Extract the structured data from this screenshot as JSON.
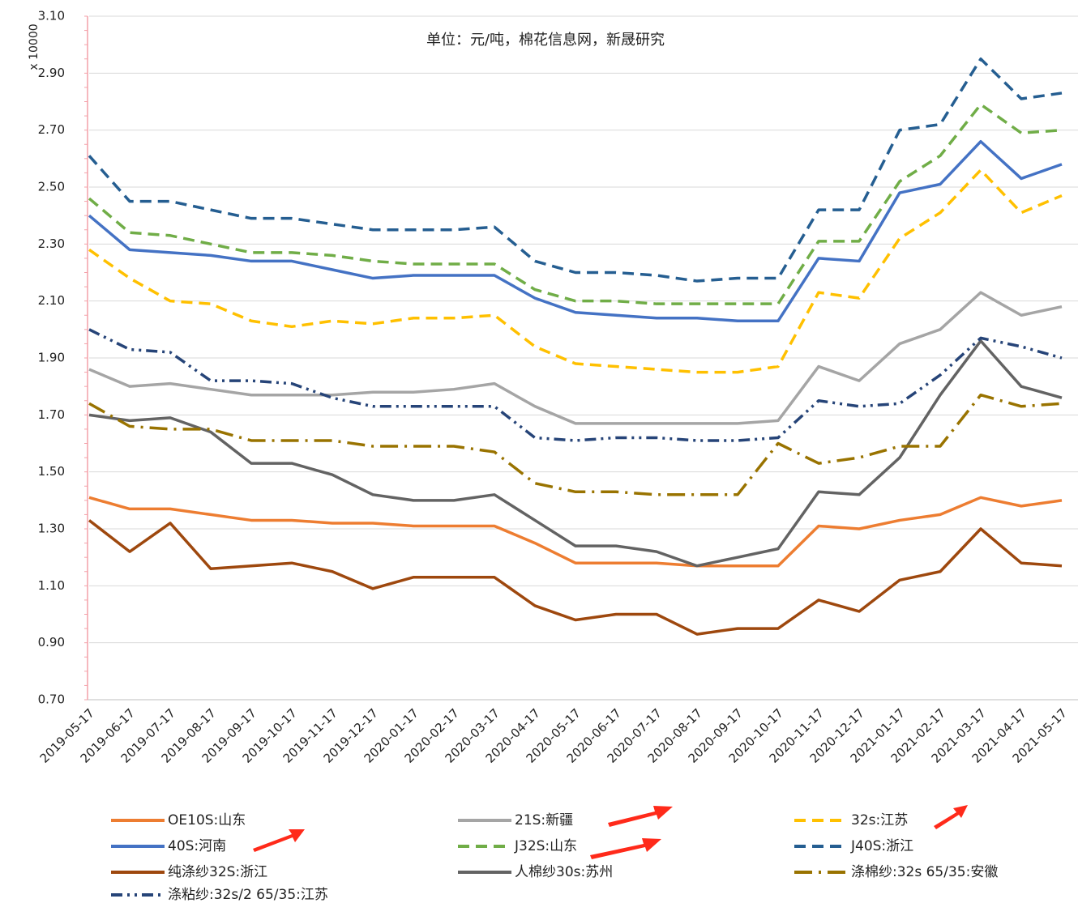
{
  "chart_data": {
    "type": "line",
    "subtitle": "单位：元/吨，棉花信息网，新晟研究",
    "y_axis_label": "x 10000",
    "categories": [
      "2019-05-17",
      "2019-06-17",
      "2019-07-17",
      "2019-08-17",
      "2019-09-17",
      "2019-10-17",
      "2019-11-17",
      "2019-12-17",
      "2020-01-17",
      "2020-02-17",
      "2020-03-17",
      "2020-04-17",
      "2020-05-17",
      "2020-06-17",
      "2020-07-17",
      "2020-08-17",
      "2020-09-17",
      "2020-10-17",
      "2020-11-17",
      "2020-12-17",
      "2021-01-17",
      "2021-02-17",
      "2021-03-17",
      "2021-04-17",
      "2021-05-17"
    ],
    "ylim": [
      0.7,
      3.1
    ],
    "yticks": [
      {
        "value": 0.7,
        "label": "0.70"
      },
      {
        "value": 0.9,
        "label": "0.90"
      },
      {
        "value": 1.1,
        "label": "1.10"
      },
      {
        "value": 1.3,
        "label": "1.30"
      },
      {
        "value": 1.5,
        "label": "1.50"
      },
      {
        "value": 1.7,
        "label": "1.70"
      },
      {
        "value": 1.9,
        "label": "1.90"
      },
      {
        "value": 2.1,
        "label": "2.10"
      },
      {
        "value": 2.3,
        "label": "2.30"
      },
      {
        "value": 2.5,
        "label": "2.50"
      },
      {
        "value": 2.7,
        "label": "2.70"
      },
      {
        "value": 2.9,
        "label": "2.90"
      },
      {
        "value": 3.1,
        "label": "3.10"
      }
    ],
    "grid": true,
    "series": [
      {
        "name": "OE10S:山东",
        "color": "#ed7d31",
        "dash": "solid",
        "values": [
          1.41,
          1.37,
          1.37,
          1.35,
          1.33,
          1.33,
          1.32,
          1.32,
          1.31,
          1.31,
          1.31,
          1.25,
          1.18,
          1.18,
          1.18,
          1.17,
          1.17,
          1.17,
          1.31,
          1.3,
          1.33,
          1.35,
          1.41,
          1.38,
          1.4
        ]
      },
      {
        "name": "21S:新疆",
        "color": "#a5a5a5",
        "dash": "solid",
        "values": [
          1.86,
          1.8,
          1.81,
          1.79,
          1.77,
          1.77,
          1.77,
          1.78,
          1.78,
          1.79,
          1.81,
          1.73,
          1.67,
          1.67,
          1.67,
          1.67,
          1.67,
          1.68,
          1.87,
          1.82,
          1.95,
          2.0,
          2.13,
          2.05,
          2.08
        ]
      },
      {
        "name": "32s:江苏",
        "color": "#ffc000",
        "dash": "dash",
        "values": [
          2.28,
          2.18,
          2.1,
          2.09,
          2.03,
          2.01,
          2.03,
          2.02,
          2.04,
          2.04,
          2.05,
          1.94,
          1.88,
          1.87,
          1.86,
          1.85,
          1.85,
          1.87,
          2.13,
          2.11,
          2.32,
          2.41,
          2.56,
          2.41,
          2.47
        ]
      },
      {
        "name": "40S:河南",
        "color": "#4472c4",
        "dash": "solid",
        "values": [
          2.4,
          2.28,
          2.27,
          2.26,
          2.24,
          2.24,
          2.21,
          2.18,
          2.19,
          2.19,
          2.19,
          2.11,
          2.06,
          2.05,
          2.04,
          2.04,
          2.03,
          2.03,
          2.25,
          2.24,
          2.48,
          2.51,
          2.66,
          2.53,
          2.58
        ]
      },
      {
        "name": "J32S:山东",
        "color": "#70ad47",
        "dash": "dash",
        "values": [
          2.46,
          2.34,
          2.33,
          2.3,
          2.27,
          2.27,
          2.26,
          2.24,
          2.23,
          2.23,
          2.23,
          2.14,
          2.1,
          2.1,
          2.09,
          2.09,
          2.09,
          2.09,
          2.31,
          2.31,
          2.52,
          2.61,
          2.79,
          2.69,
          2.7
        ]
      },
      {
        "name": "J40S:浙江",
        "color": "#255e91",
        "dash": "dash",
        "values": [
          2.61,
          2.45,
          2.45,
          2.42,
          2.39,
          2.39,
          2.37,
          2.35,
          2.35,
          2.35,
          2.36,
          2.24,
          2.2,
          2.2,
          2.19,
          2.17,
          2.18,
          2.18,
          2.42,
          2.42,
          2.7,
          2.72,
          2.95,
          2.81,
          2.83
        ]
      },
      {
        "name": "纯涤纱32S:浙江",
        "color": "#9e480e",
        "dash": "solid",
        "values": [
          1.33,
          1.22,
          1.32,
          1.16,
          1.17,
          1.18,
          1.15,
          1.09,
          1.13,
          1.13,
          1.13,
          1.03,
          0.98,
          1.0,
          1.0,
          0.93,
          0.95,
          0.95,
          1.05,
          1.01,
          1.12,
          1.15,
          1.3,
          1.18,
          1.17
        ]
      },
      {
        "name": "人棉纱30s:苏州",
        "color": "#636363",
        "dash": "solid",
        "values": [
          1.7,
          1.68,
          1.69,
          1.64,
          1.53,
          1.53,
          1.49,
          1.42,
          1.4,
          1.4,
          1.42,
          1.33,
          1.24,
          1.24,
          1.22,
          1.17,
          1.2,
          1.23,
          1.43,
          1.42,
          1.55,
          1.77,
          1.96,
          1.8,
          1.76
        ]
      },
      {
        "name": "涤棉纱:32s 65/35:安徽",
        "color": "#997300",
        "dash": "long-dash-dot",
        "values": [
          1.74,
          1.66,
          1.65,
          1.65,
          1.61,
          1.61,
          1.61,
          1.59,
          1.59,
          1.59,
          1.57,
          1.46,
          1.43,
          1.43,
          1.42,
          1.42,
          1.42,
          1.6,
          1.53,
          1.55,
          1.59,
          1.59,
          1.77,
          1.73,
          1.74
        ]
      },
      {
        "name": "涤粘纱:32s/2 65/35:江苏",
        "color": "#264478",
        "dash": "dash-dot-dot",
        "values": [
          2.0,
          1.93,
          1.92,
          1.82,
          1.82,
          1.81,
          1.76,
          1.73,
          1.73,
          1.73,
          1.73,
          1.62,
          1.61,
          1.62,
          1.62,
          1.61,
          1.61,
          1.62,
          1.75,
          1.73,
          1.74,
          1.84,
          1.97,
          1.94,
          1.9
        ]
      }
    ]
  }
}
